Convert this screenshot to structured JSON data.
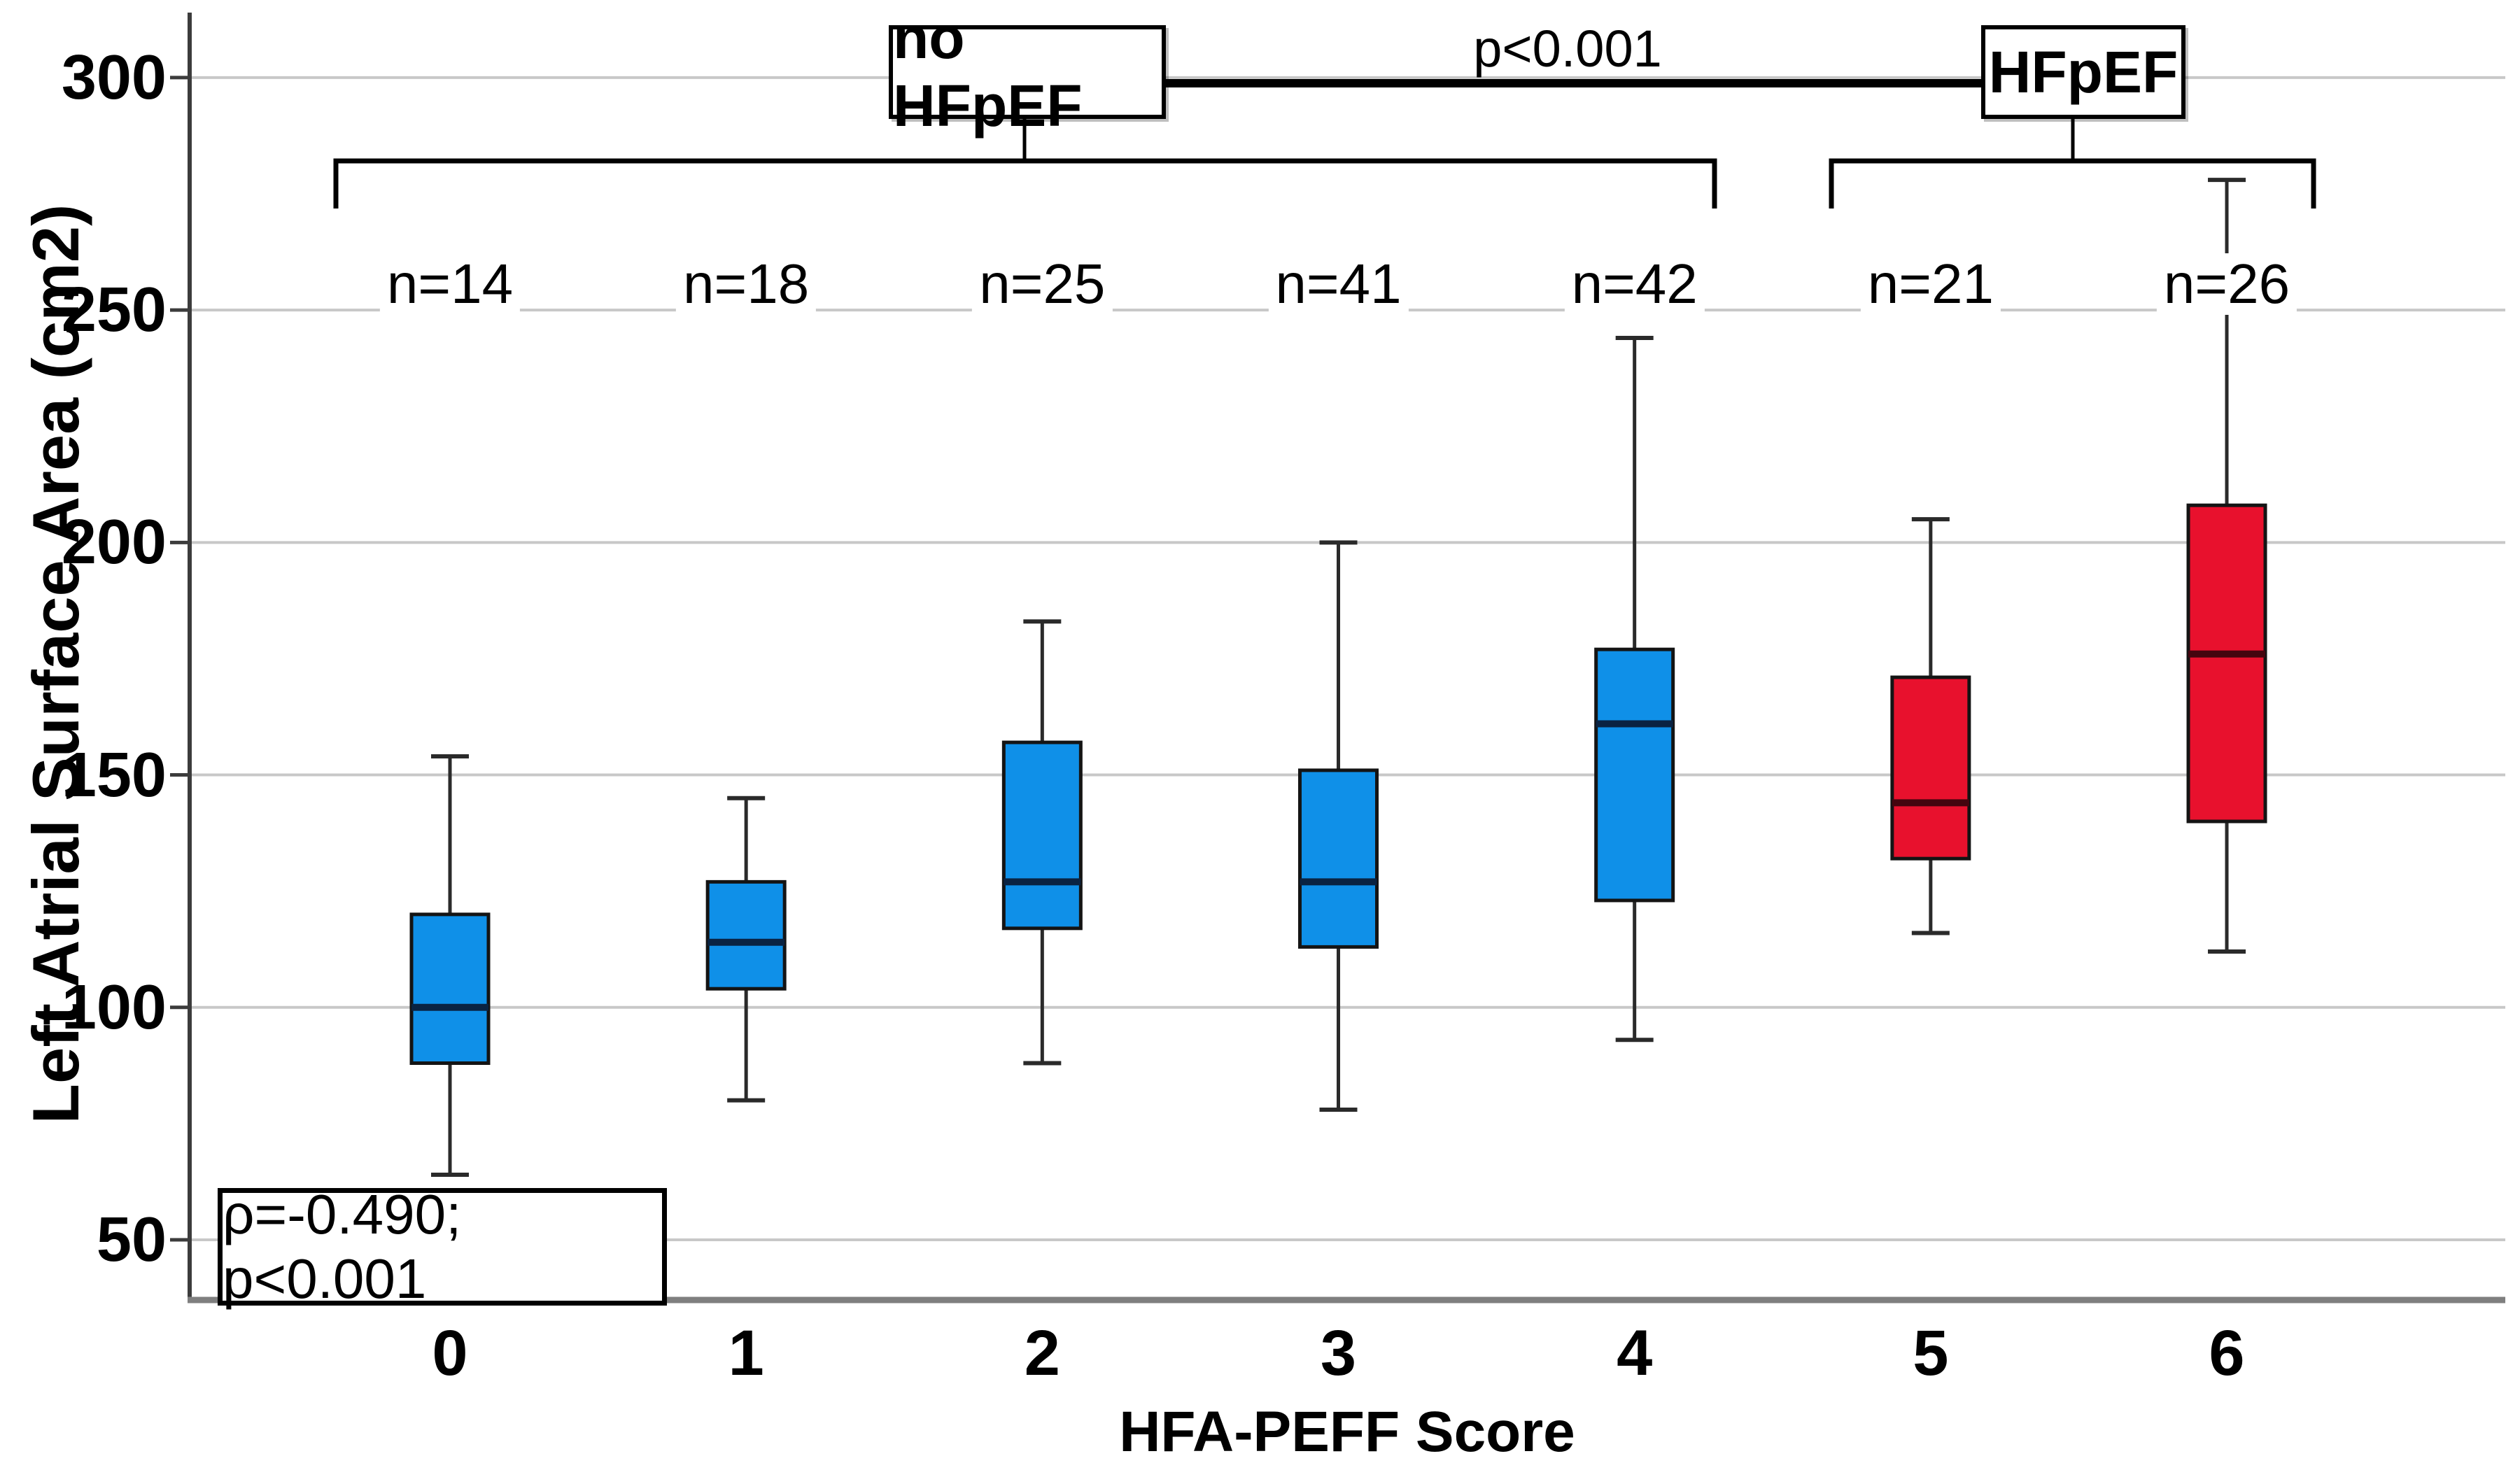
{
  "figure": {
    "kind": "box-and-whisker plot",
    "background": "#ffffff"
  },
  "chart_data": {
    "type": "boxplot",
    "title": "",
    "xlabel": "HFA-PEFF Score",
    "ylabel": "Left Atrial Surface Area (cm2)",
    "ylim": [
      37,
      313
    ],
    "yticks": [
      300,
      250,
      200,
      150,
      100,
      50
    ],
    "grid": "horizontal gridlines on",
    "categories": [
      "0",
      "1",
      "2",
      "3",
      "4",
      "5",
      "6"
    ],
    "series": [
      {
        "score": "0",
        "n_label": "n=14",
        "group": "no HFpEF",
        "whisker_low": 64,
        "q1": 88,
        "median": 100,
        "q3": 120,
        "whisker_high": 154
      },
      {
        "score": "1",
        "n_label": "n=18",
        "group": "no HFpEF",
        "whisker_low": 80,
        "q1": 104,
        "median": 114,
        "q3": 127,
        "whisker_high": 145
      },
      {
        "score": "2",
        "n_label": "n=25",
        "group": "no HFpEF",
        "whisker_low": 88,
        "q1": 117,
        "median": 127,
        "q3": 157,
        "whisker_high": 183
      },
      {
        "score": "3",
        "n_label": "n=41",
        "group": "no HFpEF",
        "whisker_low": 78,
        "q1": 113,
        "median": 127,
        "q3": 151,
        "whisker_high": 200
      },
      {
        "score": "4",
        "n_label": "n=42",
        "group": "no HFpEF",
        "whisker_low": 93,
        "q1": 123,
        "median": 161,
        "q3": 177,
        "whisker_high": 244
      },
      {
        "score": "5",
        "n_label": "n=21",
        "group": "HFpEF",
        "whisker_low": 116,
        "q1": 132,
        "median": 144,
        "q3": 171,
        "whisker_high": 205
      },
      {
        "score": "6",
        "n_label": "n=26",
        "group": "HFpEF",
        "whisker_low": 112,
        "q1": 140,
        "median": 176,
        "q3": 208,
        "whisker_high": 278
      }
    ],
    "groups": [
      {
        "label": "no HFpEF",
        "scores": [
          "0",
          "1",
          "2",
          "3",
          "4"
        ],
        "fill": "#0f90e8"
      },
      {
        "label": "HFpEF",
        "scores": [
          "5",
          "6"
        ],
        "fill": "#e8112d"
      }
    ],
    "annotations": {
      "group_no_hfpef_label": "no HFpEF",
      "group_hfpef_label": "HFpEF",
      "p_between_groups": "p<0.001",
      "correlation": "ρ=-0.490; p<0.001"
    },
    "colors": {
      "no_hfpef_fill": "#0f90e8",
      "hfpef_fill": "#e8112d",
      "no_hfpef_median": "#0a2342",
      "hfpef_median": "#45050f",
      "box_border": "#141414",
      "whisker": "#2a2a2a",
      "gridline": "#c8c8c8",
      "y_axis": "#3c3c3c",
      "x_axis": "#7f7f7f",
      "annotation_line": "#000000"
    }
  }
}
